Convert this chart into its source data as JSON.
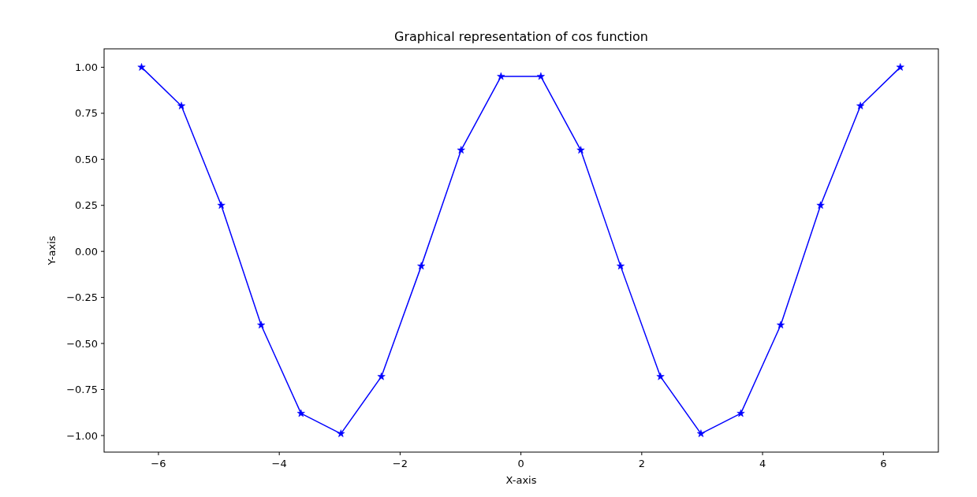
{
  "chart_data": {
    "type": "line",
    "title": "Graphical representation of cos function",
    "xlabel": "X-axis",
    "ylabel": "Y-axis",
    "x": [
      -6.28,
      -5.62,
      -4.96,
      -4.3,
      -3.64,
      -2.98,
      -2.31,
      -1.65,
      -0.99,
      -0.33,
      0.33,
      0.99,
      1.65,
      2.31,
      2.98,
      3.64,
      4.3,
      4.96,
      5.62,
      6.28
    ],
    "series": [
      {
        "color": "#0000ff",
        "values": [
          1.0,
          0.79,
          0.25,
          -0.4,
          -0.88,
          -0.99,
          -0.68,
          -0.08,
          0.55,
          0.95,
          0.95,
          0.55,
          -0.08,
          -0.68,
          -0.99,
          -0.88,
          -0.4,
          0.25,
          0.79,
          1.0
        ]
      }
    ],
    "marker": "star",
    "line_style": "solid",
    "grid": false,
    "xlim": [
      -6.9,
      6.91
    ],
    "ylim": [
      -1.09,
      1.1
    ],
    "xticks": [
      {
        "value": -6,
        "label": "−6"
      },
      {
        "value": -4,
        "label": "−4"
      },
      {
        "value": -2,
        "label": "−2"
      },
      0,
      2,
      4,
      6
    ],
    "yticks": [
      {
        "value": -1,
        "label": "−1.00"
      },
      {
        "value": -0.75,
        "label": "−0.75"
      },
      {
        "value": -0.5,
        "label": "−0.50"
      },
      {
        "value": -0.25,
        "label": "−0.25"
      },
      {
        "value": 0,
        "label": "0.00"
      },
      {
        "value": 0.25,
        "label": "0.25"
      },
      {
        "value": 0.5,
        "label": "0.50"
      },
      {
        "value": 0.75,
        "label": "0.75"
      },
      {
        "value": 1,
        "label": "1.00"
      }
    ]
  }
}
